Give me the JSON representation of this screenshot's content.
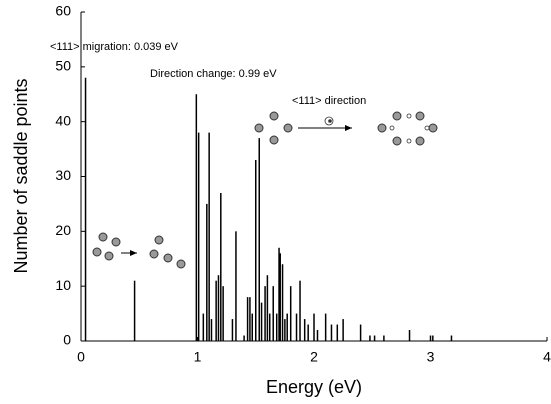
{
  "chart_data": {
    "type": "bar",
    "x_label": "Energy (eV)",
    "y_label": "Number of saddle points",
    "annotations": [
      "<111> migration: 0.039 eV",
      "Direction change: 0.99 eV",
      "<111> direction"
    ],
    "x": [
      0.039,
      0.46,
      0.99,
      1.01,
      1.05,
      1.08,
      1.1,
      1.12,
      1.16,
      1.18,
      1.2,
      1.22,
      1.3,
      1.33,
      1.4,
      1.43,
      1.45,
      1.47,
      1.5,
      1.53,
      1.55,
      1.58,
      1.6,
      1.62,
      1.65,
      1.68,
      1.7,
      1.71,
      1.73,
      1.75,
      1.77,
      1.8,
      1.85,
      1.88,
      1.92,
      1.95,
      2.0,
      2.03,
      2.1,
      2.15,
      2.2,
      2.25,
      2.4,
      2.48,
      2.52,
      2.6,
      2.82,
      3.0,
      3.02,
      3.18
    ],
    "values": [
      48,
      11,
      45,
      38,
      5,
      25,
      38,
      4,
      11,
      12,
      27,
      10,
      4,
      20,
      1,
      8,
      8,
      5,
      33,
      37,
      7,
      10,
      12,
      5,
      10,
      5,
      17,
      16,
      14,
      4,
      5,
      10,
      5,
      11,
      4,
      3,
      5,
      2,
      5,
      3,
      3,
      4,
      3,
      1,
      1,
      1,
      2,
      1,
      1,
      1
    ],
    "color": "#000000",
    "xlim": [
      0,
      4
    ],
    "xticks": [
      0,
      1,
      2,
      3,
      4
    ],
    "ylim": [
      0,
      60
    ],
    "yticks": [
      0,
      10,
      20,
      30,
      40,
      50,
      60
    ]
  }
}
